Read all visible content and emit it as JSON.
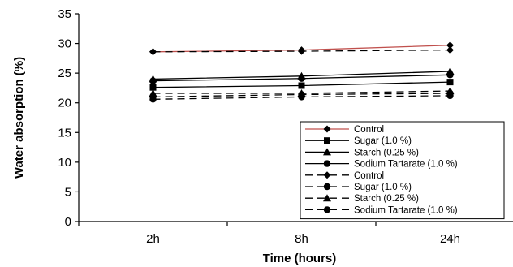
{
  "chart_data": {
    "type": "line",
    "title": "",
    "xlabel": "Time (hours)",
    "ylabel": "Water absorption (%)",
    "categories": [
      "2h",
      "8h",
      "24h"
    ],
    "ylim": [
      0,
      35
    ],
    "yticks": [
      0,
      5,
      10,
      15,
      20,
      25,
      30,
      35
    ],
    "grid": false,
    "legend_position": "bottom-right",
    "series": [
      {
        "name": "Control",
        "values": [
          28.6,
          28.9,
          29.7
        ],
        "marker": "diamond",
        "dash": "solid",
        "color": "#c0504d"
      },
      {
        "name": "Sugar (1.0 %)",
        "values": [
          22.6,
          22.9,
          23.5
        ],
        "marker": "square",
        "dash": "solid",
        "color": "#000000"
      },
      {
        "name": "Starch (0.25 %)",
        "values": [
          24.0,
          24.5,
          25.3
        ],
        "marker": "triangle",
        "dash": "solid",
        "color": "#000000"
      },
      {
        "name": "Sodium Tartarate (1.0 %)",
        "values": [
          23.7,
          24.1,
          24.7
        ],
        "marker": "circle",
        "dash": "solid",
        "color": "#000000"
      },
      {
        "name": "Control",
        "values": [
          28.6,
          28.7,
          28.9
        ],
        "marker": "diamond",
        "dash": "dashed",
        "color": "#000000"
      },
      {
        "name": "Sugar (1.0 %)",
        "values": [
          20.6,
          21.0,
          21.2
        ],
        "marker": "circle",
        "dash": "dashed",
        "color": "#000000"
      },
      {
        "name": "Starch (0.25 %)",
        "values": [
          21.6,
          21.6,
          22.0
        ],
        "marker": "triangle",
        "dash": "dashed",
        "color": "#000000"
      },
      {
        "name": "Sodium Tartarate (1.0 %)",
        "values": [
          21.0,
          21.4,
          21.6
        ],
        "marker": "circle",
        "dash": "dashed",
        "color": "#000000"
      }
    ]
  }
}
